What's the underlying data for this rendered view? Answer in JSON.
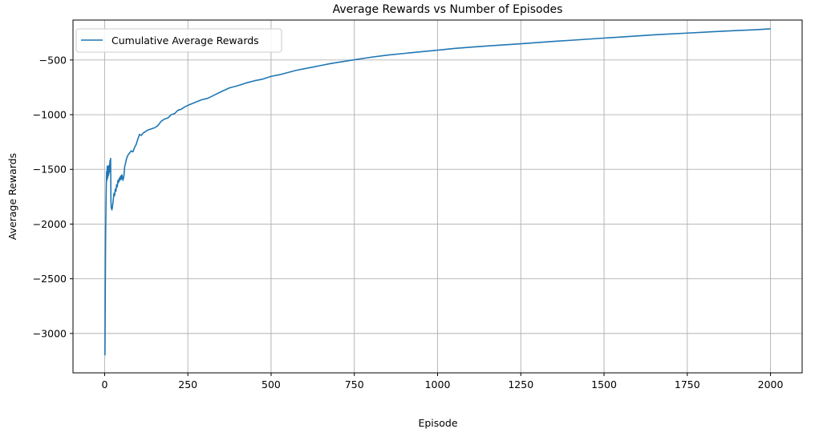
{
  "chart_data": {
    "type": "line",
    "title": "Average Rewards vs Number of Episodes",
    "xlabel": "Episode",
    "ylabel": "Average Rewards",
    "xlim": [
      -95,
      2095
    ],
    "ylim": [
      -3360,
      -135
    ],
    "x_ticks": [
      0,
      250,
      500,
      750,
      1000,
      1250,
      1500,
      1750,
      2000
    ],
    "y_ticks": [
      -3000,
      -2500,
      -2000,
      -1500,
      -1000,
      -500
    ],
    "grid": true,
    "legend_position": "top-left",
    "series": [
      {
        "name": "Cumulative Average Rewards",
        "color": "#1f77b4",
        "points": [
          [
            1,
            -3200
          ],
          [
            2,
            -2600
          ],
          [
            3,
            -2100
          ],
          [
            4,
            -1850
          ],
          [
            5,
            -1650
          ],
          [
            6,
            -1520
          ],
          [
            7,
            -1600
          ],
          [
            8,
            -1470
          ],
          [
            9,
            -1580
          ],
          [
            10,
            -1500
          ],
          [
            11,
            -1560
          ],
          [
            12,
            -1470
          ],
          [
            13,
            -1540
          ],
          [
            14,
            -1460
          ],
          [
            15,
            -1520
          ],
          [
            16,
            -1420
          ],
          [
            17,
            -1460
          ],
          [
            18,
            -1400
          ],
          [
            19,
            -1800
          ],
          [
            20,
            -1850
          ],
          [
            22,
            -1870
          ],
          [
            24,
            -1830
          ],
          [
            26,
            -1780
          ],
          [
            28,
            -1720
          ],
          [
            30,
            -1740
          ],
          [
            32,
            -1680
          ],
          [
            34,
            -1700
          ],
          [
            36,
            -1640
          ],
          [
            38,
            -1660
          ],
          [
            40,
            -1600
          ],
          [
            42,
            -1620
          ],
          [
            44,
            -1580
          ],
          [
            46,
            -1600
          ],
          [
            48,
            -1560
          ],
          [
            50,
            -1590
          ],
          [
            52,
            -1550
          ],
          [
            55,
            -1600
          ],
          [
            58,
            -1560
          ],
          [
            60,
            -1480
          ],
          [
            63,
            -1440
          ],
          [
            66,
            -1400
          ],
          [
            70,
            -1370
          ],
          [
            75,
            -1350
          ],
          [
            80,
            -1330
          ],
          [
            85,
            -1340
          ],
          [
            90,
            -1300
          ],
          [
            95,
            -1270
          ],
          [
            100,
            -1220
          ],
          [
            105,
            -1180
          ],
          [
            110,
            -1190
          ],
          [
            115,
            -1170
          ],
          [
            120,
            -1160
          ],
          [
            125,
            -1150
          ],
          [
            130,
            -1140
          ],
          [
            140,
            -1130
          ],
          [
            150,
            -1120
          ],
          [
            160,
            -1100
          ],
          [
            170,
            -1060
          ],
          [
            180,
            -1040
          ],
          [
            190,
            -1030
          ],
          [
            200,
            -1000
          ],
          [
            210,
            -990
          ],
          [
            220,
            -960
          ],
          [
            230,
            -950
          ],
          [
            240,
            -930
          ],
          [
            250,
            -915
          ],
          [
            270,
            -890
          ],
          [
            290,
            -865
          ],
          [
            310,
            -850
          ],
          [
            330,
            -820
          ],
          [
            350,
            -790
          ],
          [
            375,
            -755
          ],
          [
            400,
            -735
          ],
          [
            425,
            -710
          ],
          [
            450,
            -690
          ],
          [
            475,
            -675
          ],
          [
            500,
            -650
          ],
          [
            525,
            -635
          ],
          [
            550,
            -615
          ],
          [
            575,
            -595
          ],
          [
            600,
            -580
          ],
          [
            625,
            -565
          ],
          [
            650,
            -550
          ],
          [
            675,
            -535
          ],
          [
            700,
            -522
          ],
          [
            725,
            -510
          ],
          [
            750,
            -498
          ],
          [
            800,
            -475
          ],
          [
            850,
            -455
          ],
          [
            900,
            -440
          ],
          [
            950,
            -425
          ],
          [
            1000,
            -410
          ],
          [
            1050,
            -395
          ],
          [
            1100,
            -383
          ],
          [
            1150,
            -372
          ],
          [
            1200,
            -362
          ],
          [
            1250,
            -352
          ],
          [
            1300,
            -341
          ],
          [
            1350,
            -330
          ],
          [
            1400,
            -320
          ],
          [
            1450,
            -310
          ],
          [
            1500,
            -300
          ],
          [
            1550,
            -290
          ],
          [
            1600,
            -280
          ],
          [
            1650,
            -270
          ],
          [
            1700,
            -262
          ],
          [
            1750,
            -254
          ],
          [
            1800,
            -246
          ],
          [
            1850,
            -238
          ],
          [
            1900,
            -231
          ],
          [
            1950,
            -224
          ],
          [
            2000,
            -215
          ]
        ]
      }
    ]
  }
}
